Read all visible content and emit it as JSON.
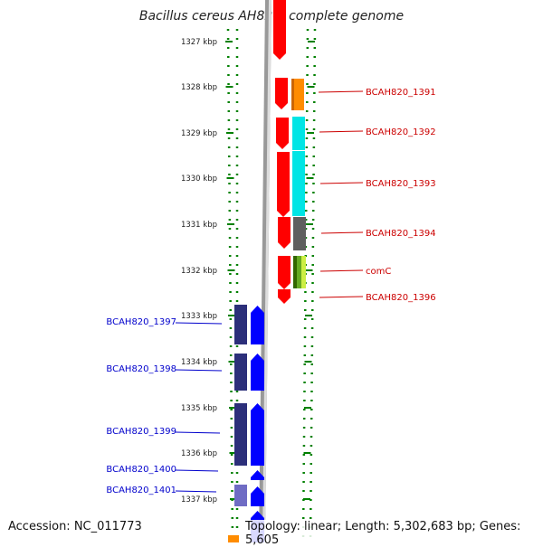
{
  "title": "Bacillus cereus AH820, complete genome",
  "accession": "Accession: NC_011773",
  "summary": "Topology: linear; Length: 5,302,683 bp; Genes: 5,605",
  "colors": {
    "forward_gene": "#ff0000",
    "reverse_gene": "#0000ff",
    "reverse_cds": "#2c2f7a",
    "reverse_cds_light": "#6f6cc4",
    "label_forward": "#cc0000",
    "label_reverse": "#0000cc",
    "tick": "#008000",
    "backbone": "#999999"
  },
  "ruler": [
    "1327 kbp",
    "1328 kbp",
    "1329 kbp",
    "1330 kbp",
    "1331 kbp",
    "1332 kbp",
    "1333 kbp",
    "1334 kbp",
    "1335 kbp",
    "1336 kbp",
    "1337 kbp"
  ],
  "forward_labels": [
    "BCAH820_1391",
    "BCAH820_1392",
    "BCAH820_1393",
    "BCAH820_1394",
    "comC",
    "BCAH820_1396"
  ],
  "reverse_labels": [
    "BCAH820_1397",
    "BCAH820_1398",
    "BCAH820_1399",
    "BCAH820_1400",
    "BCAH820_1401"
  ]
}
